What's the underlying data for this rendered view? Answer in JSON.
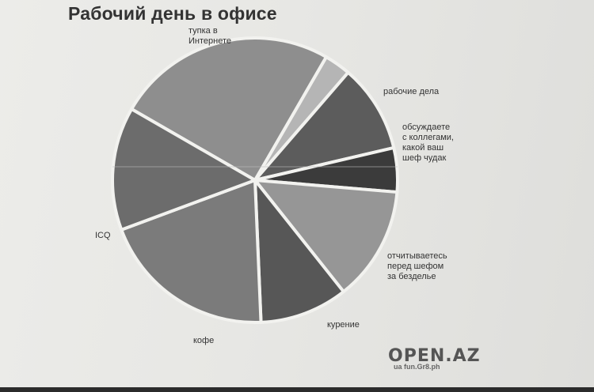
{
  "chart_data": {
    "type": "pie",
    "title": "Рабочий день в офисе",
    "slices": [
      {
        "label": "тупка в\nИнтернете",
        "value": 25,
        "color": "#8e8e8e"
      },
      {
        "label": "рабочие дела",
        "value": 3,
        "color": "#b5b5b5"
      },
      {
        "label": "обсуждаете\nс коллегами,\nкакой ваш\nшеф чудак",
        "value": 10,
        "color": "#5c5c5c"
      },
      {
        "label": "отчитываетесь\nперед шефом\nза безделье",
        "value": 5,
        "color": "#3b3b3b"
      },
      {
        "label": "курение",
        "value": 13,
        "color": "#969696"
      },
      {
        "label": "кофе",
        "value": 10,
        "color": "#575757"
      },
      {
        "label": "ICQ",
        "value": 20,
        "color": "#7b7b7b"
      },
      {
        "label": "",
        "value": 14,
        "color": "#6c6c6c"
      }
    ]
  },
  "logo": {
    "main": "OPEN.AZ",
    "sub": "ua fun.Gr8.ph"
  }
}
